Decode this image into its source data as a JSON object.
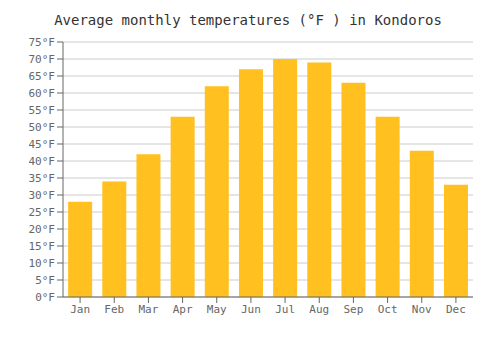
{
  "chart_data": {
    "type": "bar",
    "title": "Average monthly temperatures (°F ) in Kondoros",
    "categories": [
      "Jan",
      "Feb",
      "Mar",
      "Apr",
      "May",
      "Jun",
      "Jul",
      "Aug",
      "Sep",
      "Oct",
      "Nov",
      "Dec"
    ],
    "values": [
      28,
      34,
      42,
      53,
      62,
      67,
      70,
      69,
      63,
      53,
      43,
      33
    ],
    "color": "#FFC020",
    "ylim": [
      0,
      75
    ],
    "yticks": [
      {
        "value": 0,
        "label": "0°F"
      },
      {
        "value": 5,
        "label": "5°F"
      },
      {
        "value": 10,
        "label": "10°F"
      },
      {
        "value": 15,
        "label": "15°F"
      },
      {
        "value": 20,
        "label": "20°F"
      },
      {
        "value": 25,
        "label": "25°F"
      },
      {
        "value": 30,
        "label": "30°F"
      },
      {
        "value": 35,
        "label": "35°F"
      },
      {
        "value": 40,
        "label": "40°F"
      },
      {
        "value": 45,
        "label": "45°F"
      },
      {
        "value": 50,
        "label": "50°F"
      },
      {
        "value": 55,
        "label": "55°F"
      },
      {
        "value": 60,
        "label": "60°F"
      },
      {
        "value": 65,
        "label": "65°F"
      },
      {
        "value": 70,
        "label": "70°F"
      },
      {
        "value": 75,
        "label": "75°F"
      }
    ],
    "grid": true
  }
}
